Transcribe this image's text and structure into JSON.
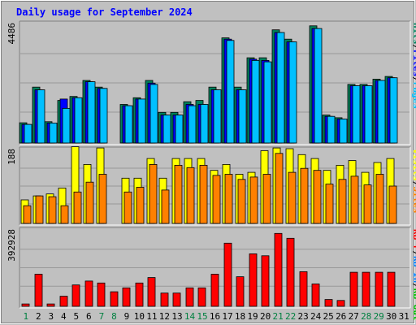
{
  "colors": {
    "background": "#c0c0c0",
    "panel": "#c0c0c0",
    "grid": "#999999",
    "title": "#0000ff",
    "hits": "#00805c",
    "files": "#0000ff",
    "pages": "#00c0ff",
    "visits": "#ffff00",
    "sites": "#ff8000",
    "kb_in": "#0080ff",
    "kb_out": "#00c000",
    "kb_f": "#ff0000",
    "weekend": "#008040",
    "weekday": "#000000"
  },
  "chart_data": {
    "type": "bar",
    "title": "Daily usage for September 2024",
    "categories": [
      "1",
      "2",
      "3",
      "4",
      "5",
      "6",
      "7",
      "8",
      "9",
      "10",
      "11",
      "12",
      "13",
      "14",
      "15",
      "16",
      "17",
      "18",
      "19",
      "20",
      "21",
      "22",
      "23",
      "24",
      "25",
      "26",
      "27",
      "28",
      "29",
      "30",
      "31"
    ],
    "weekend_days": [
      "1",
      "7",
      "8",
      "14",
      "15",
      "21",
      "22",
      "28",
      "29"
    ],
    "panels": [
      {
        "name": "hits-files-pages",
        "ymax_label": "4486",
        "ymax": 4486,
        "right_labels": [
          {
            "text": "Hits",
            "color_key": "hits"
          },
          {
            "text": "Files",
            "color_key": "files"
          },
          {
            "text": "Pages",
            "color_key": "pages"
          }
        ],
        "series": [
          {
            "name": "Hits",
            "color_key": "hits",
            "values": [
              760,
              2100,
              800,
              1600,
              1750,
              2350,
              2100,
              0,
              1450,
              1700,
              2350,
              1150,
              1150,
              1550,
              1600,
              2100,
              3950,
              2100,
              3200,
              3200,
              4250,
              3900,
              0,
              4400,
              1050,
              950,
              2200,
              2200,
              2400,
              2500,
              0
            ]
          },
          {
            "name": "Files",
            "color_key": "files",
            "values": [
              700,
              2000,
              750,
              1650,
              1700,
              2300,
              2050,
              0,
              1400,
              1650,
              2250,
              1050,
              1050,
              1450,
              1450,
              2000,
              3900,
              2000,
              3150,
              3100,
              4150,
              3800,
              0,
              4300,
              1000,
              900,
              2150,
              2150,
              2350,
              2450,
              0
            ]
          },
          {
            "name": "Pages",
            "color_key": "pages",
            "values": [
              700,
              2000,
              750,
              1300,
              1700,
              2300,
              2050,
              0,
              1400,
              1650,
              2200,
              1050,
              1050,
              1400,
              1450,
              2000,
              3850,
              2000,
              3100,
              3050,
              4150,
              3800,
              0,
              4300,
              1000,
              900,
              2150,
              2150,
              2350,
              2450,
              0
            ]
          }
        ]
      },
      {
        "name": "visits-sites",
        "ymax_label": "188",
        "ymax": 188,
        "right_labels": [
          {
            "text": "Visits",
            "color_key": "visits"
          },
          {
            "text": "Sites",
            "color_key": "sites"
          }
        ],
        "series": [
          {
            "name": "Visits",
            "color_key": "visits",
            "values": [
              60,
              70,
              75,
              90,
              195,
              150,
              192,
              0,
              115,
              115,
              165,
              115,
              165,
              165,
              165,
              135,
              150,
              125,
              130,
              185,
              192,
              190,
              175,
              165,
              135,
              148,
              160,
              130,
              155,
              165,
              0
            ]
          },
          {
            "name": "Sites",
            "color_key": "sites",
            "values": [
              45,
              70,
              68,
              45,
              80,
              105,
              125,
              0,
              80,
              92,
              150,
              85,
              148,
              142,
              148,
              122,
              125,
              112,
              118,
              125,
              178,
              130,
              140,
              135,
              100,
              112,
              120,
              98,
              125,
              95,
              0
            ]
          }
        ]
      },
      {
        "name": "kbytes",
        "ymax_label": "392928",
        "ymax": 392928,
        "right_labels": [
          {
            "text": "KB F",
            "color_key": "kb_f"
          },
          {
            "text": "KB In",
            "color_key": "kb_in"
          },
          {
            "text": "KB Out",
            "color_key": "kb_out"
          }
        ],
        "series": [
          {
            "name": "KB F",
            "color_key": "kb_f",
            "values": [
              12000,
              165000,
              12000,
              52000,
              110000,
              130000,
              120000,
              75000,
              95000,
              120000,
              148000,
              68000,
              68000,
              95000,
              95000,
              165000,
              325000,
              152000,
              270000,
              260000,
              375000,
              350000,
              178000,
              115000,
              35000,
              30000,
              175000,
              175000,
              175000,
              175000,
              0
            ]
          }
        ]
      }
    ]
  }
}
